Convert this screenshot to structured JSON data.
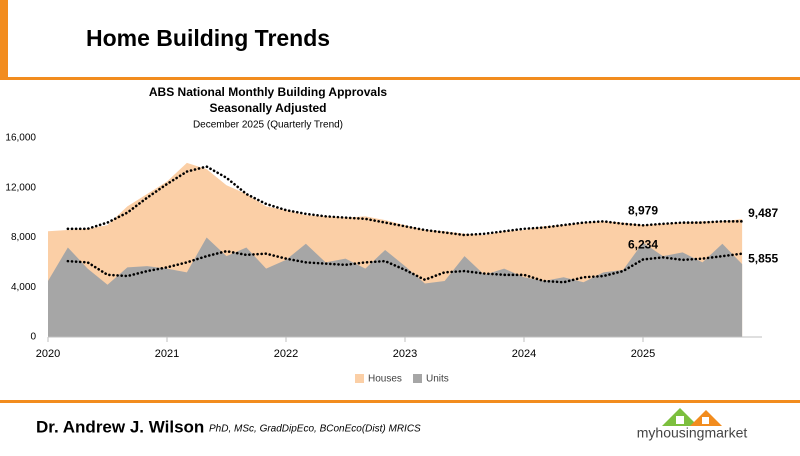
{
  "header": {
    "title": "Home Building Trends"
  },
  "chart_data": {
    "type": "area",
    "title": "ABS National Monthly Building Approvals",
    "subtitle": "Seasonally Adjusted",
    "note": "December 2025 (Quarterly Trend)",
    "x": [
      2020,
      2020.167,
      2020.333,
      2020.5,
      2020.667,
      2020.833,
      2021,
      2021.167,
      2021.333,
      2021.5,
      2021.667,
      2021.833,
      2022,
      2022.167,
      2022.333,
      2022.5,
      2022.667,
      2022.833,
      2023,
      2023.167,
      2023.333,
      2023.5,
      2023.667,
      2023.833,
      2024,
      2024.167,
      2024.333,
      2024.5,
      2024.667,
      2024.833,
      2025,
      2025.167,
      2025.333,
      2025.5,
      2025.667,
      2025.833
    ],
    "series": [
      {
        "name": "Houses",
        "color": "#fbcfa6",
        "values": [
          8500,
          8600,
          8700,
          9000,
          10500,
          11500,
          12500,
          14000,
          13500,
          12200,
          11500,
          10500,
          10200,
          9800,
          9700,
          9600,
          9700,
          9400,
          9000,
          8600,
          8500,
          8300,
          8200,
          8500,
          8600,
          8900,
          9000,
          9200,
          9300,
          9200,
          9000,
          9100,
          9200,
          9300,
          9300,
          9487
        ],
        "value_labels": [
          null,
          null,
          null,
          null,
          null,
          null,
          null,
          null,
          null,
          null,
          null,
          null,
          null,
          null,
          null,
          null,
          null,
          null,
          null,
          null,
          null,
          null,
          null,
          null,
          null,
          null,
          null,
          null,
          null,
          null,
          null,
          null,
          null,
          null,
          null,
          "9,487"
        ]
      },
      {
        "name": "Units",
        "color": "#a6a6a6",
        "values": [
          4500,
          7200,
          5500,
          4200,
          5600,
          5700,
          5500,
          5200,
          8000,
          6500,
          7200,
          5500,
          6200,
          7500,
          6000,
          6300,
          5500,
          7000,
          5700,
          4300,
          4500,
          6500,
          5000,
          5500,
          4800,
          4500,
          4800,
          4400,
          5200,
          5400,
          7600,
          6500,
          6800,
          6000,
          7500,
          5855
        ],
        "value_labels": [
          null,
          null,
          null,
          null,
          null,
          null,
          null,
          null,
          null,
          null,
          null,
          null,
          null,
          null,
          null,
          null,
          null,
          null,
          null,
          null,
          null,
          null,
          null,
          null,
          null,
          null,
          null,
          null,
          null,
          null,
          null,
          null,
          null,
          null,
          null,
          "5,855"
        ]
      },
      {
        "color": "#000000",
        "dotted": true,
        "values": [
          null,
          8700,
          8700,
          9200,
          10000,
          11200,
          12300,
          13300,
          13700,
          12800,
          11500,
          10700,
          10200,
          9900,
          9700,
          9600,
          9500,
          9200,
          8900,
          8600,
          8400,
          8200,
          8300,
          8500,
          8700,
          8800,
          9000,
          9200,
          9300,
          9100,
          8979,
          9100,
          9200,
          9200,
          9300,
          9300
        ],
        "value_labels": [
          null,
          null,
          null,
          null,
          null,
          null,
          null,
          null,
          null,
          null,
          null,
          null,
          null,
          null,
          null,
          null,
          null,
          null,
          null,
          null,
          null,
          null,
          null,
          null,
          null,
          null,
          null,
          null,
          null,
          null,
          "8,979",
          null,
          null,
          null,
          null,
          null
        ]
      },
      {
        "color": "#000000",
        "dotted": true,
        "values": [
          null,
          6100,
          6000,
          5000,
          4900,
          5300,
          5600,
          6000,
          6500,
          6900,
          6600,
          6700,
          6300,
          6000,
          5900,
          5800,
          6000,
          6100,
          5400,
          4600,
          5200,
          5300,
          5100,
          5000,
          5000,
          4500,
          4400,
          4800,
          4900,
          5300,
          6234,
          6400,
          6200,
          6300,
          6500,
          6700
        ],
        "value_labels": [
          null,
          null,
          null,
          null,
          null,
          null,
          null,
          null,
          null,
          null,
          null,
          null,
          null,
          null,
          null,
          null,
          null,
          null,
          null,
          null,
          null,
          null,
          null,
          null,
          null,
          null,
          null,
          null,
          null,
          null,
          "6,234",
          null,
          null,
          null,
          null,
          null
        ]
      }
    ],
    "xlim": [
      2020,
      2026
    ],
    "xticks": [
      2020,
      2021,
      2022,
      2023,
      2024,
      2025
    ],
    "ylim": [
      0,
      16000
    ],
    "yticks": [
      0,
      {
        "value": 4000,
        "label": "4,000"
      },
      {
        "value": 8000,
        "label": "8,000"
      },
      {
        "value": 12000,
        "label": "12,000"
      },
      {
        "value": 16000,
        "label": "16,000"
      }
    ],
    "grid": false,
    "legend": "bottom"
  },
  "footer": {
    "author": "Dr. Andrew J. Wilson",
    "credentials": "PhD, MSc, GradDipEco, BConEco(Dist) MRICS",
    "logo": "myhousingmarket"
  }
}
